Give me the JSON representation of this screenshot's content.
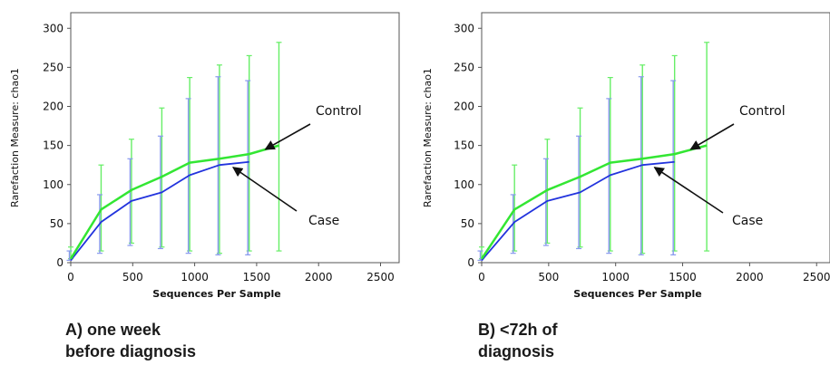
{
  "colors": {
    "control": "#33e633",
    "case": "#2233dd",
    "errorbar_control": "#66ee66",
    "errorbar_case": "#8899ee",
    "axis": "#555555",
    "arrow": "#111111"
  },
  "chart_data": [
    {
      "type": "line",
      "panel": "A",
      "ylabel": "Rarefaction Measure: chao1",
      "xlabel": "Sequences Per Sample",
      "xlim": [
        0,
        2650
      ],
      "ylim": [
        0,
        320
      ],
      "x_ticks": [
        0,
        500,
        1000,
        1500,
        2000,
        2500
      ],
      "y_ticks": [
        0,
        50,
        100,
        150,
        200,
        250,
        300
      ],
      "series": [
        {
          "name": "Control",
          "x": [
            0,
            245,
            490,
            735,
            960,
            1200,
            1440,
            1680
          ],
          "y": [
            5,
            68,
            93,
            110,
            128,
            133,
            139,
            150
          ],
          "err_low": [
            5,
            15,
            25,
            20,
            15,
            12,
            15,
            15
          ],
          "err_high": [
            20,
            125,
            158,
            198,
            237,
            253,
            265,
            282
          ]
        },
        {
          "name": "Case",
          "x": [
            0,
            245,
            490,
            735,
            960,
            1200,
            1440
          ],
          "y": [
            3,
            52,
            79,
            90,
            112,
            125,
            129
          ],
          "err_low": [
            3,
            12,
            22,
            18,
            12,
            10,
            10
          ],
          "err_high": [
            15,
            87,
            133,
            162,
            210,
            238,
            233
          ]
        }
      ],
      "annotations": [
        {
          "text": "Control",
          "points_to_x": 1570,
          "points_to_y": 145
        },
        {
          "text": "Case",
          "points_to_x": 1310,
          "points_to_y": 122
        }
      ]
    },
    {
      "type": "line",
      "panel": "B",
      "ylabel": "Rarefaction Measure: chao1",
      "xlabel": "Sequences Per Sample",
      "xlim": [
        0,
        2600
      ],
      "ylim": [
        0,
        320
      ],
      "x_ticks": [
        0,
        500,
        1000,
        1500,
        2000,
        2500
      ],
      "y_ticks": [
        0,
        50,
        100,
        150,
        200,
        250,
        300
      ],
      "series": [
        {
          "name": "Control",
          "x": [
            0,
            245,
            490,
            735,
            960,
            1200,
            1440,
            1680
          ],
          "y": [
            5,
            68,
            93,
            110,
            128,
            133,
            139,
            150
          ],
          "err_low": [
            5,
            15,
            25,
            20,
            15,
            12,
            15,
            15
          ],
          "err_high": [
            20,
            125,
            158,
            198,
            237,
            253,
            265,
            282
          ]
        },
        {
          "name": "Case",
          "x": [
            0,
            245,
            490,
            735,
            960,
            1200,
            1440
          ],
          "y": [
            3,
            52,
            79,
            90,
            112,
            125,
            129
          ],
          "err_low": [
            3,
            12,
            22,
            18,
            12,
            10,
            10
          ],
          "err_high": [
            15,
            87,
            133,
            162,
            210,
            238,
            233
          ]
        }
      ],
      "annotations": [
        {
          "text": "Control",
          "points_to_x": 1560,
          "points_to_y": 145
        },
        {
          "text": "Case",
          "points_to_x": 1290,
          "points_to_y": 122
        }
      ]
    }
  ],
  "captions": [
    {
      "label": "A)",
      "line1": "one week",
      "line2": "before diagnosis"
    },
    {
      "label": "B)",
      "line1": "<72h of",
      "line2": "diagnosis"
    }
  ]
}
